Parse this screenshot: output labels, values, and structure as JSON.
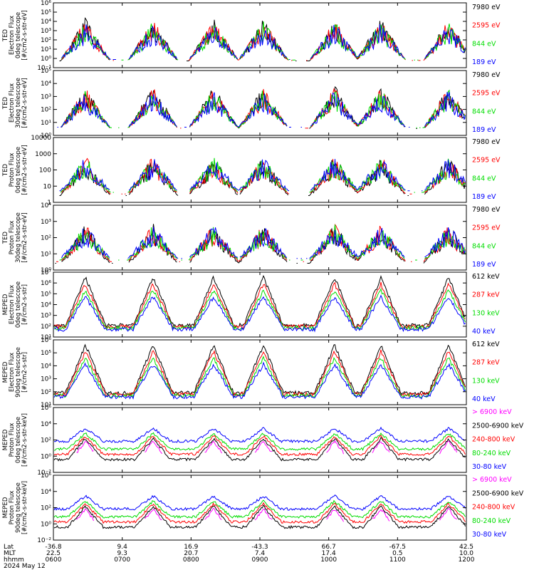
{
  "chart_data": {
    "type": "line",
    "date_label": "2024 May 12",
    "x_rows": [
      {
        "label": "Lat",
        "ticks": [
          "-36.8",
          "9.4",
          "16.9",
          "-43.3",
          "66.7",
          "-67.5",
          "42.5"
        ]
      },
      {
        "label": "MLT",
        "ticks": [
          "22.5",
          "9.3",
          "20.7",
          "7.4",
          "17.4",
          "0.5",
          "10.0"
        ]
      },
      {
        "label": "hhmm",
        "ticks": [
          "0600",
          "0700",
          "0800",
          "0900",
          "1000",
          "1100",
          "1200"
        ]
      }
    ],
    "panels": [
      {
        "ylabel": [
          "TED",
          "Electron Flux",
          "0deg telescope",
          "[#/cm2-s-str-eV]"
        ],
        "yticks": [
          "10⁻¹",
          "10⁰",
          "10¹",
          "10²",
          "10³",
          "10⁴",
          "10⁵",
          "10⁶"
        ],
        "yscale": "log",
        "series": [
          {
            "name": "7980 eV",
            "color": "#000000"
          },
          {
            "name": "2595 eV",
            "color": "#ff0000"
          },
          {
            "name": "844 eV",
            "color": "#00dd00"
          },
          {
            "name": "189 eV",
            "color": "#0000ff"
          }
        ]
      },
      {
        "ylabel": [
          "TED",
          "Electron Flux",
          "30deg telescope",
          "[#/cm2-s-str-eV]"
        ],
        "yticks": [
          "10⁰",
          "10¹",
          "10²",
          "10³",
          "10⁴",
          "10⁵"
        ],
        "yscale": "log",
        "series": [
          {
            "name": "7980 eV",
            "color": "#000000"
          },
          {
            "name": "2595 eV",
            "color": "#ff0000"
          },
          {
            "name": "844 eV",
            "color": "#00dd00"
          },
          {
            "name": "189 eV",
            "color": "#0000ff"
          }
        ]
      },
      {
        "ylabel": [
          "TED",
          "Proton Flux",
          "0deg telescope",
          "[#/cm2-s-str-eV]"
        ],
        "yticks": [
          "1",
          "10",
          "100",
          "1000",
          "10000"
        ],
        "yscale": "log",
        "series": [
          {
            "name": "7980 eV",
            "color": "#000000"
          },
          {
            "name": "2595 eV",
            "color": "#ff0000"
          },
          {
            "name": "844 eV",
            "color": "#00dd00"
          },
          {
            "name": "189 eV",
            "color": "#0000ff"
          }
        ]
      },
      {
        "ylabel": [
          "TED",
          "Proton Flux",
          "30deg telescope",
          "[#/cm2-s-str-eV]"
        ],
        "yticks": [
          "10⁰",
          "10¹",
          "10²",
          "10³",
          "10⁴"
        ],
        "yscale": "log",
        "series": [
          {
            "name": "7980 eV",
            "color": "#000000"
          },
          {
            "name": "2595 eV",
            "color": "#ff0000"
          },
          {
            "name": "844 eV",
            "color": "#00dd00"
          },
          {
            "name": "189 eV",
            "color": "#0000ff"
          }
        ]
      },
      {
        "ylabel": [
          "MEPED",
          "Electron Flux",
          "0deg telescope",
          "[#/cm2-s-str]"
        ],
        "yticks": [
          "10¹",
          "10²",
          "10³",
          "10⁴",
          "10⁵",
          "10⁶",
          "10⁷"
        ],
        "yscale": "log",
        "series": [
          {
            "name": "612 keV",
            "color": "#000000"
          },
          {
            "name": "287 keV",
            "color": "#ff0000"
          },
          {
            "name": "130 keV",
            "color": "#00dd00"
          },
          {
            "name": "40 keV",
            "color": "#0000ff"
          }
        ]
      },
      {
        "ylabel": [
          "MEPED",
          "Electron Flux",
          "90deg telescope",
          "[#/cm2-s-str]"
        ],
        "yticks": [
          "10¹",
          "10²",
          "10³",
          "10⁴",
          "10⁵",
          "10⁶"
        ],
        "yscale": "log",
        "series": [
          {
            "name": "612 keV",
            "color": "#000000"
          },
          {
            "name": "287 keV",
            "color": "#ff0000"
          },
          {
            "name": "130 keV",
            "color": "#00dd00"
          },
          {
            "name": "40 keV",
            "color": "#0000ff"
          }
        ]
      },
      {
        "ylabel": [
          "MEPED",
          "Proton Flux",
          "0deg telescope",
          "[#/cm2-s-str-keV]"
        ],
        "yticks": [
          "10⁻²",
          "10⁰",
          "10²",
          "10⁴",
          "10⁶"
        ],
        "yscale": "log",
        "series": [
          {
            "name": "> 6900 keV",
            "color": "#ff00ff"
          },
          {
            "name": "2500-6900 keV",
            "color": "#000000"
          },
          {
            "name": "240-800 keV",
            "color": "#ff0000"
          },
          {
            "name": "80-240 keV",
            "color": "#00dd00"
          },
          {
            "name": "30-80 keV",
            "color": "#0000ff"
          }
        ]
      },
      {
        "ylabel": [
          "MEPED",
          "Proton Flux",
          "90deg telescope",
          "[#/cm2-s-str-keV]"
        ],
        "yticks": [
          "10⁻²",
          "10⁰",
          "10²",
          "10⁴",
          "10⁶"
        ],
        "yscale": "log",
        "series": [
          {
            "name": "> 6900 keV",
            "color": "#ff00ff"
          },
          {
            "name": "2500-6900 keV",
            "color": "#000000"
          },
          {
            "name": "240-800 keV",
            "color": "#ff0000"
          },
          {
            "name": "80-240 keV",
            "color": "#00dd00"
          },
          {
            "name": "30-80 keV",
            "color": "#0000ff"
          }
        ]
      }
    ]
  }
}
